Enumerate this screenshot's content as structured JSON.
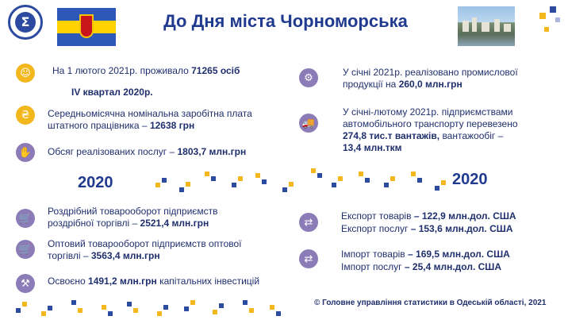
{
  "header": {
    "title": "До Дня міста Чорноморська"
  },
  "left": {
    "population": "На 1 лютого 2021р. проживало",
    "population_value": "71265 осіб",
    "quarter": "IV квартал 2020р.",
    "salary_1": "Середньомісячна номінальна заробітна плата",
    "salary_2": "штатного працівника –",
    "salary_value": "12638 грн",
    "services": "Обсяг реалізованих послуг –",
    "services_value": "1803,7 млн.грн",
    "year": "2020",
    "retail_1": "Роздрібний товарооборот підприємств",
    "retail_2": "роздрібної торгівлі –",
    "retail_value": "2521,4 млн.грн",
    "wholesale_1": "Оптовий товарооборот підприємств оптової",
    "wholesale_2": "торгівлі –",
    "wholesale_value": "3563,4 млн.грн",
    "invest_pre": "Освоєно",
    "invest_value": "1491,2 млн.грн",
    "invest_post": "капітальних інвестицій"
  },
  "right": {
    "industry_1": "У січні 2021р. реалізовано промислової",
    "industry_2": "продукції на",
    "industry_value": "260,0 млн.грн",
    "transport_1": "У січні-лютому 2021р. підприємствами",
    "transport_2": "автомобільного транспорту перевезено",
    "transport_3_value": "274,8 тис.т вантажів,",
    "transport_3_post": "вантажообіг –",
    "transport_4_value": "13,4 млн.ткм",
    "year": "2020",
    "export_goods_label": "Експорт товарів",
    "export_goods_value": "– 122,9 млн.дол. США",
    "export_services_label": "Експорт послуг",
    "export_services_value": "– 153,6 млн.дол. США",
    "import_goods_label": "Імпорт товарів",
    "import_goods_value": "– 169,5 млн.дол. США",
    "import_services_label": "Імпорт послуг",
    "import_services_value": "– 25,4 млн.дол. США"
  },
  "footer": {
    "text": "© Головне управління статистики в Одеській області, 2021"
  },
  "icons": [
    "statistics-logo-icon",
    "population-icon",
    "salary-icon",
    "services-icon",
    "retail-cart-icon",
    "wholesale-cart-icon",
    "investment-icon",
    "industry-icon",
    "transport-icon",
    "export-icon",
    "import-icon"
  ],
  "colors": {
    "accent_yellow": "#f2b71c",
    "accent_purple": "#8b7bb6",
    "text_blue": "#1f2f6e",
    "title_blue": "#1f3a8f"
  }
}
